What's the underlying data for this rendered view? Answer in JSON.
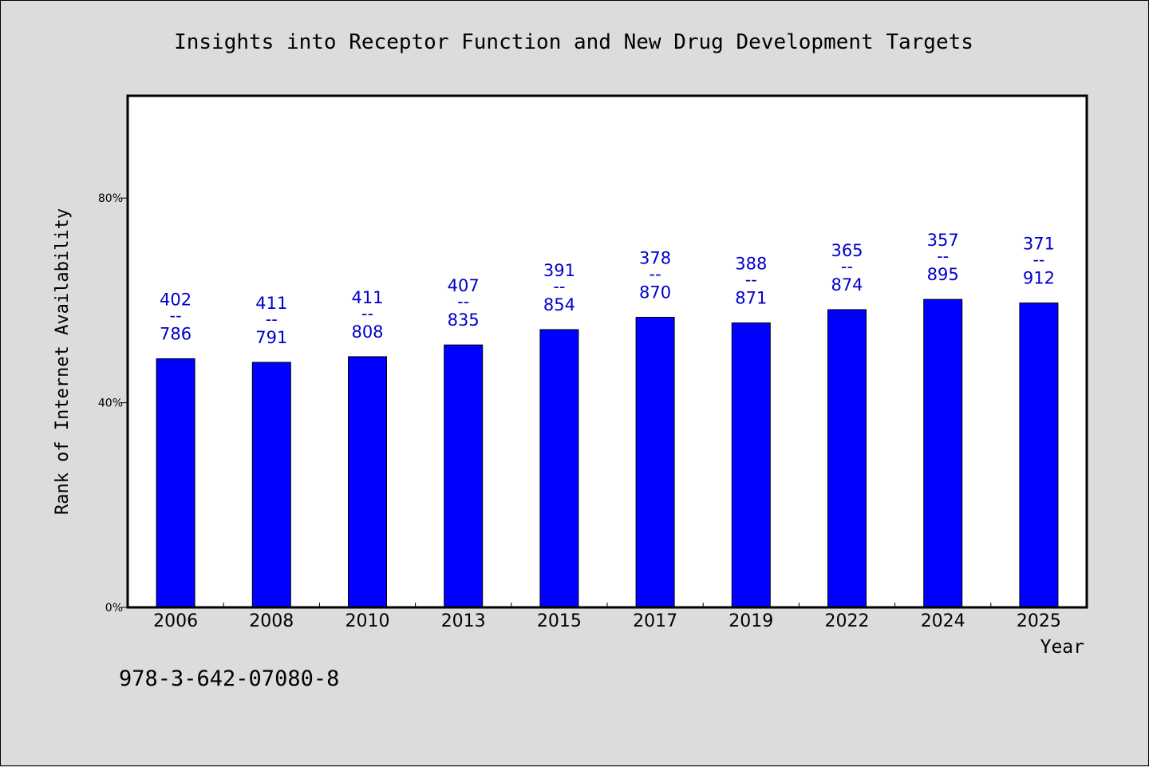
{
  "chart_data": {
    "type": "bar",
    "title": "Insights into Receptor Function and New Drug Development Targets",
    "xlabel": "Year",
    "ylabel": "Rank of Internet Availability",
    "categories": [
      "2006",
      "2008",
      "2010",
      "2013",
      "2015",
      "2017",
      "2019",
      "2022",
      "2024",
      "2025"
    ],
    "values": [
      48.6,
      47.9,
      49.0,
      51.3,
      54.3,
      56.7,
      55.6,
      58.2,
      60.2,
      59.5
    ],
    "bar_labels": [
      {
        "top": "402",
        "sep": "--",
        "bottom": "786"
      },
      {
        "top": "411",
        "sep": "--",
        "bottom": "791"
      },
      {
        "top": "411",
        "sep": "--",
        "bottom": "808"
      },
      {
        "top": "407",
        "sep": "--",
        "bottom": "835"
      },
      {
        "top": "391",
        "sep": "--",
        "bottom": "854"
      },
      {
        "top": "378",
        "sep": "--",
        "bottom": "870"
      },
      {
        "top": "388",
        "sep": "--",
        "bottom": "871"
      },
      {
        "top": "365",
        "sep": "--",
        "bottom": "874"
      },
      {
        "top": "357",
        "sep": "--",
        "bottom": "895"
      },
      {
        "top": "371",
        "sep": "--",
        "bottom": "912"
      }
    ],
    "yticks": [
      0,
      40,
      80
    ],
    "ytick_labels": [
      "0%",
      "40%",
      "80%"
    ],
    "ylim": [
      0,
      100
    ],
    "grid": false,
    "legend": "none",
    "colors": {
      "bar": "#0000ff",
      "bar_label": "#0000cc",
      "plot_background": "#ffffff",
      "figure_background": "#dcdcdc"
    }
  },
  "footer": {
    "isbn": "978-3-642-07080-8"
  }
}
